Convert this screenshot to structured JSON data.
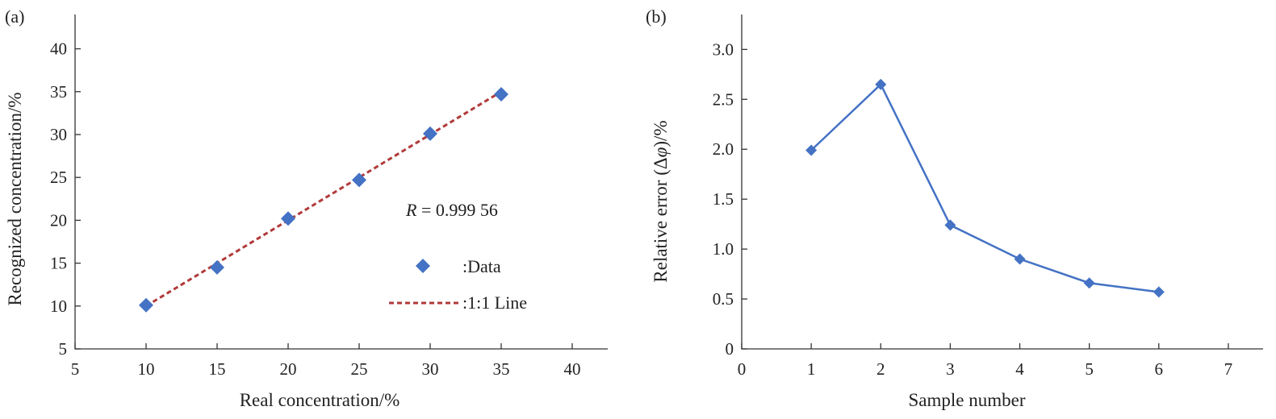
{
  "chart_data": [
    {
      "panel_label": "(a)",
      "type": "scatter",
      "xlabel": "Real concentration/%",
      "ylabel": "Recognized concentration/%",
      "xlim": [
        5,
        42.5
      ],
      "ylim": [
        5,
        44
      ],
      "xticks": [
        5,
        10,
        15,
        20,
        25,
        30,
        35,
        40
      ],
      "yticks": [
        5,
        10,
        15,
        20,
        25,
        30,
        35,
        40
      ],
      "series": [
        {
          "name": ":Data",
          "marker": "diamond",
          "color": "#4472C4",
          "x": [
            10,
            15,
            20,
            25,
            30,
            35
          ],
          "y": [
            10.1,
            14.5,
            20.2,
            24.7,
            30.1,
            34.7
          ]
        },
        {
          "name": ":1:1 Line",
          "style": "dashed",
          "color": "#B03A3A",
          "x": [
            10,
            35
          ],
          "y": [
            10,
            35
          ]
        }
      ],
      "annotation": {
        "italic": "R",
        "text": " = 0.999 56"
      },
      "legend_position": "right-middle"
    },
    {
      "panel_label": "(b)",
      "type": "line",
      "xlabel": "Sample number",
      "ylabel_parts": [
        "Relative error (Δ",
        "φ",
        ")/%"
      ],
      "xlim": [
        0,
        7.5
      ],
      "ylim": [
        0,
        3.35
      ],
      "xticks": [
        0,
        1,
        2,
        3,
        4,
        5,
        6,
        7
      ],
      "yticks": [
        0,
        0.5,
        1.0,
        1.5,
        2.0,
        2.5,
        3.0
      ],
      "ytick_labels": [
        "0",
        "0.5",
        "1.0",
        "1.5",
        "2.0",
        "2.5",
        "3.0"
      ],
      "series": [
        {
          "marker": "diamond",
          "color": "#4472C4",
          "x": [
            1,
            2,
            3,
            4,
            5,
            6
          ],
          "y": [
            1.99,
            2.65,
            1.24,
            0.9,
            0.66,
            0.57
          ]
        }
      ]
    }
  ]
}
